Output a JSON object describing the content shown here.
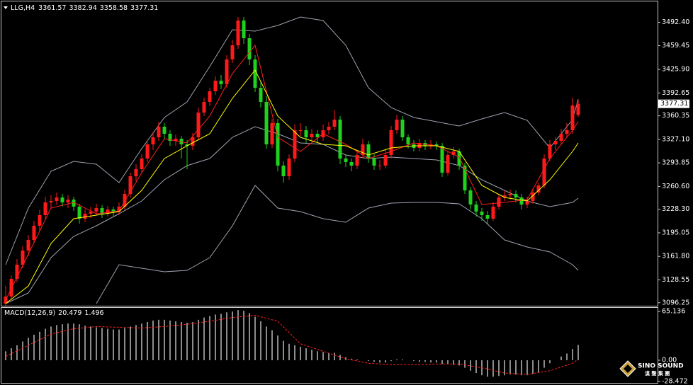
{
  "chart_data": [
    {
      "type": "candlestick",
      "symbol": "LLG,H4",
      "up_color": "#ff1a1a",
      "down_color": "#1ed21e",
      "ylim": [
        3092,
        3521
      ],
      "yticks": [
        {
          "value": 3492.4,
          "label": "3492.40"
        },
        {
          "value": 3459.45,
          "label": "3459.45"
        },
        {
          "value": 3425.9,
          "label": "3425.90"
        },
        {
          "value": 3392.65,
          "label": "3392.65"
        },
        {
          "value": 3360.35,
          "label": "3360.35"
        },
        {
          "value": 3327.1,
          "label": "3327.10"
        },
        {
          "value": 3293.85,
          "label": "3293.85"
        },
        {
          "value": 3260.6,
          "label": "3260.60"
        },
        {
          "value": 3228.3,
          "label": "3228.30"
        },
        {
          "value": 3195.05,
          "label": "3195.05"
        },
        {
          "value": 3161.8,
          "label": "3161.80"
        },
        {
          "value": 3128.55,
          "label": "3128.55"
        },
        {
          "value": 3096.25,
          "label": "3096.25"
        }
      ],
      "ohlc": [
        [
          3095,
          3120,
          3090,
          3105
        ],
        [
          3105,
          3135,
          3100,
          3130
        ],
        [
          3130,
          3158,
          3125,
          3150
        ],
        [
          3150,
          3176,
          3145,
          3170
        ],
        [
          3170,
          3192,
          3162,
          3185
        ],
        [
          3185,
          3212,
          3180,
          3205
        ],
        [
          3205,
          3228,
          3198,
          3220
        ],
        [
          3220,
          3246,
          3215,
          3238
        ],
        [
          3238,
          3248,
          3230,
          3240
        ],
        [
          3240,
          3252,
          3235,
          3245
        ],
        [
          3245,
          3250,
          3232,
          3238
        ],
        [
          3238,
          3248,
          3230,
          3242
        ],
        [
          3242,
          3246,
          3226,
          3232
        ],
        [
          3232,
          3236,
          3208,
          3215
        ],
        [
          3215,
          3228,
          3210,
          3222
        ],
        [
          3222,
          3232,
          3216,
          3225
        ],
        [
          3225,
          3236,
          3220,
          3230
        ],
        [
          3230,
          3234,
          3216,
          3222
        ],
        [
          3222,
          3233,
          3218,
          3228
        ],
        [
          3228,
          3232,
          3219,
          3225
        ],
        [
          3225,
          3238,
          3220,
          3232
        ],
        [
          3232,
          3256,
          3228,
          3250
        ],
        [
          3250,
          3280,
          3245,
          3275
        ],
        [
          3275,
          3292,
          3268,
          3285
        ],
        [
          3285,
          3306,
          3280,
          3300
        ],
        [
          3300,
          3326,
          3295,
          3320
        ],
        [
          3320,
          3338,
          3312,
          3330
        ],
        [
          3330,
          3352,
          3325,
          3345
        ],
        [
          3345,
          3350,
          3328,
          3335
        ],
        [
          3335,
          3340,
          3318,
          3325
        ],
        [
          3325,
          3334,
          3318,
          3328
        ],
        [
          3328,
          3332,
          3300,
          3320
        ],
        [
          3320,
          3326,
          3285,
          3318
        ],
        [
          3318,
          3336,
          3312,
          3330
        ],
        [
          3330,
          3372,
          3326,
          3365
        ],
        [
          3365,
          3386,
          3360,
          3380
        ],
        [
          3380,
          3400,
          3374,
          3395
        ],
        [
          3395,
          3416,
          3390,
          3410
        ],
        [
          3410,
          3418,
          3398,
          3405
        ],
        [
          3405,
          3446,
          3400,
          3440
        ],
        [
          3440,
          3468,
          3435,
          3460
        ],
        [
          3460,
          3500,
          3455,
          3495
        ],
        [
          3495,
          3500,
          3462,
          3470
        ],
        [
          3470,
          3476,
          3432,
          3440
        ],
        [
          3440,
          3446,
          3394,
          3400
        ],
        [
          3400,
          3408,
          3372,
          3380
        ],
        [
          3380,
          3388,
          3314,
          3320
        ],
        [
          3320,
          3356,
          3315,
          3350
        ],
        [
          3350,
          3356,
          3282,
          3290
        ],
        [
          3290,
          3296,
          3266,
          3275
        ],
        [
          3275,
          3306,
          3270,
          3300
        ],
        [
          3300,
          3348,
          3295,
          3340
        ],
        [
          3340,
          3350,
          3332,
          3340
        ],
        [
          3340,
          3346,
          3322,
          3330
        ],
        [
          3330,
          3342,
          3325,
          3335
        ],
        [
          3335,
          3340,
          3322,
          3330
        ],
        [
          3330,
          3348,
          3325,
          3340
        ],
        [
          3340,
          3352,
          3334,
          3345
        ],
        [
          3345,
          3368,
          3340,
          3355
        ],
        [
          3355,
          3360,
          3292,
          3300
        ],
        [
          3300,
          3306,
          3288,
          3295
        ],
        [
          3295,
          3300,
          3282,
          3290
        ],
        [
          3290,
          3312,
          3285,
          3305
        ],
        [
          3305,
          3328,
          3300,
          3320
        ],
        [
          3320,
          3325,
          3294,
          3300
        ],
        [
          3300,
          3306,
          3284,
          3290
        ],
        [
          3290,
          3298,
          3284,
          3290
        ],
        [
          3290,
          3312,
          3286,
          3305
        ],
        [
          3305,
          3346,
          3300,
          3340
        ],
        [
          3340,
          3362,
          3335,
          3355
        ],
        [
          3355,
          3360,
          3325,
          3330
        ],
        [
          3330,
          3334,
          3314,
          3320
        ],
        [
          3320,
          3326,
          3310,
          3315
        ],
        [
          3315,
          3328,
          3310,
          3322
        ],
        [
          3322,
          3326,
          3312,
          3318
        ],
        [
          3318,
          3326,
          3313,
          3320
        ],
        [
          3320,
          3324,
          3312,
          3318
        ],
        [
          3318,
          3322,
          3274,
          3280
        ],
        [
          3280,
          3310,
          3276,
          3305
        ],
        [
          3305,
          3316,
          3300,
          3310
        ],
        [
          3310,
          3314,
          3284,
          3290
        ],
        [
          3290,
          3294,
          3250,
          3255
        ],
        [
          3255,
          3260,
          3228,
          3235
        ],
        [
          3235,
          3240,
          3218,
          3225
        ],
        [
          3225,
          3230,
          3212,
          3220
        ],
        [
          3220,
          3226,
          3208,
          3215
        ],
        [
          3215,
          3238,
          3212,
          3232
        ],
        [
          3232,
          3250,
          3228,
          3245
        ],
        [
          3245,
          3254,
          3240,
          3248
        ],
        [
          3248,
          3256,
          3242,
          3250
        ],
        [
          3250,
          3255,
          3238,
          3245
        ],
        [
          3245,
          3250,
          3228,
          3235
        ],
        [
          3235,
          3246,
          3230,
          3240
        ],
        [
          3240,
          3258,
          3236,
          3252
        ],
        [
          3252,
          3266,
          3248,
          3262
        ],
        [
          3262,
          3306,
          3258,
          3300
        ],
        [
          3300,
          3326,
          3296,
          3320
        ],
        [
          3320,
          3330,
          3312,
          3325
        ],
        [
          3325,
          3342,
          3320,
          3335
        ],
        [
          3335,
          3350,
          3330,
          3340
        ],
        [
          3340,
          3386,
          3335,
          3375
        ],
        [
          3361.57,
          3382.94,
          3358.58,
          3377.31
        ]
      ],
      "line_x": [
        0,
        4,
        8,
        12,
        16,
        20,
        24,
        28,
        32,
        36,
        40,
        44,
        48,
        52,
        56,
        60,
        64,
        68,
        72,
        76,
        80,
        84,
        88,
        92,
        96,
        100,
        101
      ],
      "series": [
        {
          "color": "#9ea3b0",
          "values": [
            3150,
            3230,
            3282,
            3296,
            3292,
            3266,
            3314,
            3358,
            3380,
            3430,
            3482,
            3480,
            3488,
            3500,
            3495,
            3460,
            3400,
            3372,
            3358,
            3352,
            3346,
            3356,
            3365,
            3354,
            3315,
            3355,
            3384
          ]
        },
        {
          "color": "#9ea3b0",
          "values": [
            3095,
            3110,
            3160,
            3190,
            3205,
            3222,
            3240,
            3270,
            3290,
            3300,
            3330,
            3345,
            3335,
            3322,
            3320,
            3305,
            3300,
            3302,
            3300,
            3298,
            3290,
            3270,
            3255,
            3240,
            3232,
            3238,
            3244
          ]
        },
        {
          "color": "#9ea3b0",
          "values": [
            null,
            null,
            null,
            null,
            3095,
            3150,
            3145,
            3140,
            3142,
            3160,
            3205,
            3262,
            3230,
            3225,
            3215,
            3210,
            3230,
            3237,
            3238,
            3238,
            3236,
            3215,
            3185,
            3175,
            3168,
            3150,
            3142
          ]
        },
        {
          "color": "#ff2020",
          "values": [
            3100,
            3165,
            3230,
            3238,
            3222,
            3226,
            3280,
            3328,
            3322,
            3360,
            3420,
            3460,
            3330,
            3310,
            3335,
            3320,
            3300,
            3310,
            3322,
            3318,
            3302,
            3235,
            3238,
            3242,
            3300,
            3340,
            3352
          ]
        },
        {
          "color": "#ffff00",
          "values": [
            3095,
            3120,
            3180,
            3215,
            3220,
            3225,
            3255,
            3300,
            3318,
            3335,
            3385,
            3425,
            3360,
            3330,
            3320,
            3318,
            3305,
            3315,
            3318,
            3318,
            3310,
            3262,
            3245,
            3240,
            3270,
            3310,
            3322
          ]
        }
      ]
    },
    {
      "type": "macd",
      "title": "MACD(12,26,9)",
      "bar_color": "#e8e8e8",
      "ylim": [
        -30.2,
        69.9
      ],
      "yticks": [
        65.136,
        {
          "value": 0,
          "label": "0.00"
        },
        -28.472
      ],
      "values": [
        12,
        16,
        20,
        25,
        30,
        34,
        38,
        42,
        45,
        47,
        48,
        49,
        49,
        48,
        46,
        45,
        44,
        43,
        42,
        41,
        41,
        43,
        45,
        47,
        49,
        51,
        53,
        54,
        54,
        53,
        52,
        51,
        50,
        51,
        54,
        57,
        59,
        61,
        62,
        64,
        65,
        67,
        66,
        63,
        58,
        52,
        45,
        40,
        33,
        26,
        22,
        20,
        18,
        16,
        14,
        12,
        11,
        10,
        10,
        7,
        4,
        2,
        1,
        0,
        -1,
        -2,
        -3,
        -3,
        -1,
        1,
        1,
        0,
        -1,
        -2,
        -2,
        -3,
        -3,
        -5,
        -5,
        -6,
        -7,
        -10,
        -14,
        -17,
        -20,
        -22,
        -22,
        -21,
        -20,
        -19,
        -19,
        -20,
        -20,
        -18,
        -16,
        -10,
        -4,
        0,
        5,
        9,
        15,
        20.479
      ],
      "line_x": [
        0,
        4,
        8,
        12,
        16,
        20,
        24,
        28,
        32,
        36,
        40,
        44,
        48,
        52,
        56,
        60,
        64,
        68,
        72,
        76,
        80,
        84,
        88,
        92,
        96,
        100,
        101
      ],
      "signal": {
        "color": "#ff2020",
        "dash": true,
        "values": [
          5,
          20,
          35,
          42,
          45,
          44,
          43,
          45,
          48,
          52,
          57,
          60,
          52,
          22,
          12,
          2,
          -4,
          -6,
          -6,
          -5,
          -5,
          -10,
          -17,
          -19,
          -14,
          -4,
          1.496
        ]
      }
    }
  ],
  "watermark": {
    "brand": "SINO SOUND",
    "native": "漢 聲 集 團"
  }
}
